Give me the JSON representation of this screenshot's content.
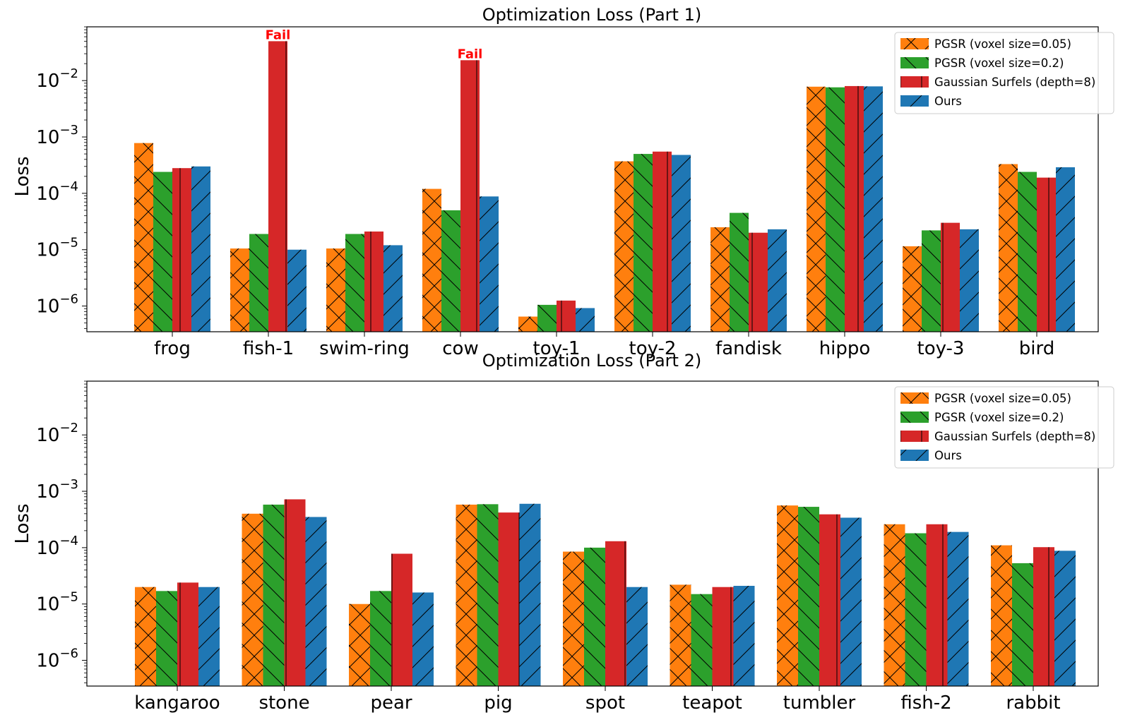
{
  "chart_data": [
    {
      "type": "bar",
      "title": "Optimization Loss (Part 1)",
      "xlabel": "",
      "ylabel": "Loss",
      "yscale": "log",
      "ylim": [
        3.5e-07,
        0.09
      ],
      "yticks": [
        1e-06,
        1e-05,
        0.0001,
        0.001,
        0.01
      ],
      "ytick_labels": [
        {
          "base": "10",
          "exp": "−6"
        },
        {
          "base": "10",
          "exp": "−5"
        },
        {
          "base": "10",
          "exp": "−4"
        },
        {
          "base": "10",
          "exp": "−3"
        },
        {
          "base": "10",
          "exp": "−2"
        }
      ],
      "grid": false,
      "legend_position": "top-right",
      "categories": [
        "frog",
        "fish-1",
        "swim-ring",
        "cow",
        "toy-1",
        "toy-2",
        "fandisk",
        "hippo",
        "toy-3",
        "bird"
      ],
      "series": [
        {
          "name": "PGSR (voxel size=0.05)",
          "color": "#ff7f0e",
          "hatch": "x",
          "values": [
            0.00078,
            1.05e-05,
            1.05e-05,
            0.00012,
            6.5e-07,
            0.00037,
            2.5e-05,
            0.0078,
            1.15e-05,
            0.00033
          ]
        },
        {
          "name": "PGSR (voxel size=0.2)",
          "color": "#2ca02c",
          "hatch": "\\",
          "values": [
            0.00024,
            1.9e-05,
            1.9e-05,
            5e-05,
            1.05e-06,
            0.0005,
            4.5e-05,
            0.0076,
            2.2e-05,
            0.00024
          ]
        },
        {
          "name": "Gaussian Surfels (depth=8)",
          "color": "#d62728",
          "hatch": "|",
          "values": [
            0.00028,
            0.05,
            2.1e-05,
            0.023,
            1.25e-06,
            0.00055,
            2e-05,
            0.008,
            3e-05,
            0.00019
          ]
        },
        {
          "name": "Ours",
          "color": "#1f77b4",
          "hatch": "/",
          "values": [
            0.0003,
            1e-05,
            1.2e-05,
            8.8e-05,
            9.2e-07,
            0.00048,
            2.3e-05,
            0.0079,
            2.3e-05,
            0.00029
          ]
        }
      ],
      "annotations": [
        {
          "text": "Fail",
          "category": "fish-1",
          "series": "Gaussian Surfels (depth=8)",
          "color": "#ff0000"
        },
        {
          "text": "Fail",
          "category": "cow",
          "series": "Gaussian Surfels (depth=8)",
          "color": "#ff0000"
        }
      ]
    },
    {
      "type": "bar",
      "title": "Optimization Loss (Part 2)",
      "xlabel": "",
      "ylabel": "Loss",
      "yscale": "log",
      "ylim": [
        3.5e-07,
        0.09
      ],
      "yticks": [
        1e-06,
        1e-05,
        0.0001,
        0.001,
        0.01
      ],
      "ytick_labels": [
        {
          "base": "10",
          "exp": "−6"
        },
        {
          "base": "10",
          "exp": "−5"
        },
        {
          "base": "10",
          "exp": "−4"
        },
        {
          "base": "10",
          "exp": "−3"
        },
        {
          "base": "10",
          "exp": "−2"
        }
      ],
      "grid": false,
      "legend_position": "top-right",
      "categories": [
        "kangaroo",
        "stone",
        "pear",
        "pig",
        "spot",
        "teapot",
        "tumbler",
        "fish-2",
        "rabbit"
      ],
      "series": [
        {
          "name": "PGSR (voxel size=0.05)",
          "color": "#ff7f0e",
          "hatch": "x",
          "values": [
            2e-05,
            0.0004,
            1e-05,
            0.00058,
            8.5e-05,
            2.2e-05,
            0.00056,
            0.00026,
            0.00011
          ]
        },
        {
          "name": "PGSR (voxel size=0.2)",
          "color": "#2ca02c",
          "hatch": "\\",
          "values": [
            1.7e-05,
            0.00058,
            1.7e-05,
            0.00059,
            0.0001,
            1.5e-05,
            0.00053,
            0.00018,
            5.3e-05
          ]
        },
        {
          "name": "Gaussian Surfels (depth=8)",
          "color": "#d62728",
          "hatch": "|",
          "values": [
            2.4e-05,
            0.00072,
            7.8e-05,
            0.00042,
            0.00013,
            2e-05,
            0.00039,
            0.00026,
            0.000102
          ]
        },
        {
          "name": "Ours",
          "color": "#1f77b4",
          "hatch": "/",
          "values": [
            2e-05,
            0.00035,
            1.6e-05,
            0.0006,
            2e-05,
            2.1e-05,
            0.00034,
            0.00019,
            8.8e-05
          ]
        }
      ],
      "annotations": []
    }
  ]
}
